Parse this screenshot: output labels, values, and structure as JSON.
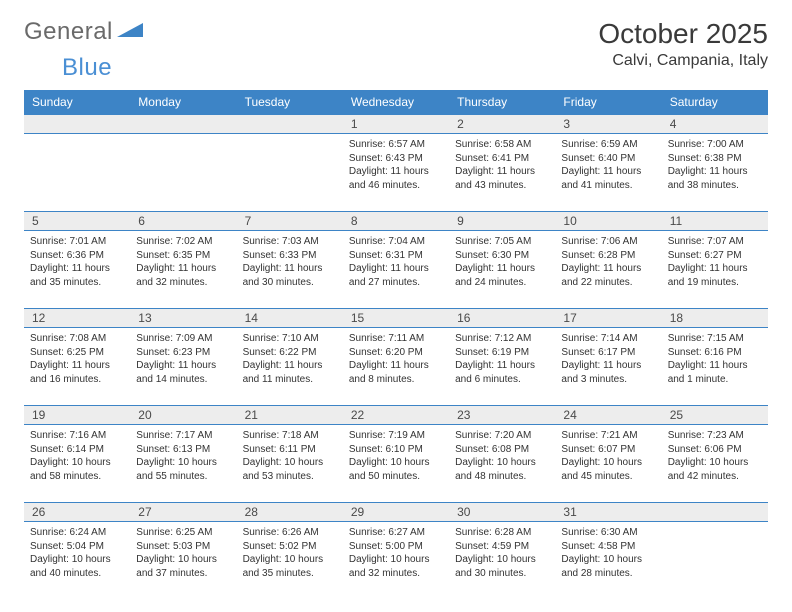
{
  "brand": {
    "name_gray": "General",
    "name_blue": "Blue"
  },
  "title": "October 2025",
  "location": "Calvi, Campania, Italy",
  "colors": {
    "header_bg": "#3d84c6",
    "header_text": "#ffffff",
    "daynum_bg": "#ededed",
    "border": "#3d84c6",
    "text": "#333333",
    "logo_gray": "#6a6a6a",
    "logo_blue": "#4a8fd4"
  },
  "day_labels": [
    "Sunday",
    "Monday",
    "Tuesday",
    "Wednesday",
    "Thursday",
    "Friday",
    "Saturday"
  ],
  "weeks": [
    {
      "nums": [
        "",
        "",
        "",
        "1",
        "2",
        "3",
        "4"
      ],
      "cells": [
        null,
        null,
        null,
        {
          "sunrise": "6:57 AM",
          "sunset": "6:43 PM",
          "daylight": "11 hours and 46 minutes."
        },
        {
          "sunrise": "6:58 AM",
          "sunset": "6:41 PM",
          "daylight": "11 hours and 43 minutes."
        },
        {
          "sunrise": "6:59 AM",
          "sunset": "6:40 PM",
          "daylight": "11 hours and 41 minutes."
        },
        {
          "sunrise": "7:00 AM",
          "sunset": "6:38 PM",
          "daylight": "11 hours and 38 minutes."
        }
      ]
    },
    {
      "nums": [
        "5",
        "6",
        "7",
        "8",
        "9",
        "10",
        "11"
      ],
      "cells": [
        {
          "sunrise": "7:01 AM",
          "sunset": "6:36 PM",
          "daylight": "11 hours and 35 minutes."
        },
        {
          "sunrise": "7:02 AM",
          "sunset": "6:35 PM",
          "daylight": "11 hours and 32 minutes."
        },
        {
          "sunrise": "7:03 AM",
          "sunset": "6:33 PM",
          "daylight": "11 hours and 30 minutes."
        },
        {
          "sunrise": "7:04 AM",
          "sunset": "6:31 PM",
          "daylight": "11 hours and 27 minutes."
        },
        {
          "sunrise": "7:05 AM",
          "sunset": "6:30 PM",
          "daylight": "11 hours and 24 minutes."
        },
        {
          "sunrise": "7:06 AM",
          "sunset": "6:28 PM",
          "daylight": "11 hours and 22 minutes."
        },
        {
          "sunrise": "7:07 AM",
          "sunset": "6:27 PM",
          "daylight": "11 hours and 19 minutes."
        }
      ]
    },
    {
      "nums": [
        "12",
        "13",
        "14",
        "15",
        "16",
        "17",
        "18"
      ],
      "cells": [
        {
          "sunrise": "7:08 AM",
          "sunset": "6:25 PM",
          "daylight": "11 hours and 16 minutes."
        },
        {
          "sunrise": "7:09 AM",
          "sunset": "6:23 PM",
          "daylight": "11 hours and 14 minutes."
        },
        {
          "sunrise": "7:10 AM",
          "sunset": "6:22 PM",
          "daylight": "11 hours and 11 minutes."
        },
        {
          "sunrise": "7:11 AM",
          "sunset": "6:20 PM",
          "daylight": "11 hours and 8 minutes."
        },
        {
          "sunrise": "7:12 AM",
          "sunset": "6:19 PM",
          "daylight": "11 hours and 6 minutes."
        },
        {
          "sunrise": "7:14 AM",
          "sunset": "6:17 PM",
          "daylight": "11 hours and 3 minutes."
        },
        {
          "sunrise": "7:15 AM",
          "sunset": "6:16 PM",
          "daylight": "11 hours and 1 minute."
        }
      ]
    },
    {
      "nums": [
        "19",
        "20",
        "21",
        "22",
        "23",
        "24",
        "25"
      ],
      "cells": [
        {
          "sunrise": "7:16 AM",
          "sunset": "6:14 PM",
          "daylight": "10 hours and 58 minutes."
        },
        {
          "sunrise": "7:17 AM",
          "sunset": "6:13 PM",
          "daylight": "10 hours and 55 minutes."
        },
        {
          "sunrise": "7:18 AM",
          "sunset": "6:11 PM",
          "daylight": "10 hours and 53 minutes."
        },
        {
          "sunrise": "7:19 AM",
          "sunset": "6:10 PM",
          "daylight": "10 hours and 50 minutes."
        },
        {
          "sunrise": "7:20 AM",
          "sunset": "6:08 PM",
          "daylight": "10 hours and 48 minutes."
        },
        {
          "sunrise": "7:21 AM",
          "sunset": "6:07 PM",
          "daylight": "10 hours and 45 minutes."
        },
        {
          "sunrise": "7:23 AM",
          "sunset": "6:06 PM",
          "daylight": "10 hours and 42 minutes."
        }
      ]
    },
    {
      "nums": [
        "26",
        "27",
        "28",
        "29",
        "30",
        "31",
        ""
      ],
      "cells": [
        {
          "sunrise": "6:24 AM",
          "sunset": "5:04 PM",
          "daylight": "10 hours and 40 minutes."
        },
        {
          "sunrise": "6:25 AM",
          "sunset": "5:03 PM",
          "daylight": "10 hours and 37 minutes."
        },
        {
          "sunrise": "6:26 AM",
          "sunset": "5:02 PM",
          "daylight": "10 hours and 35 minutes."
        },
        {
          "sunrise": "6:27 AM",
          "sunset": "5:00 PM",
          "daylight": "10 hours and 32 minutes."
        },
        {
          "sunrise": "6:28 AM",
          "sunset": "4:59 PM",
          "daylight": "10 hours and 30 minutes."
        },
        {
          "sunrise": "6:30 AM",
          "sunset": "4:58 PM",
          "daylight": "10 hours and 28 minutes."
        },
        null
      ]
    }
  ],
  "labels": {
    "sunrise": "Sunrise:",
    "sunset": "Sunset:",
    "daylight": "Daylight:"
  }
}
